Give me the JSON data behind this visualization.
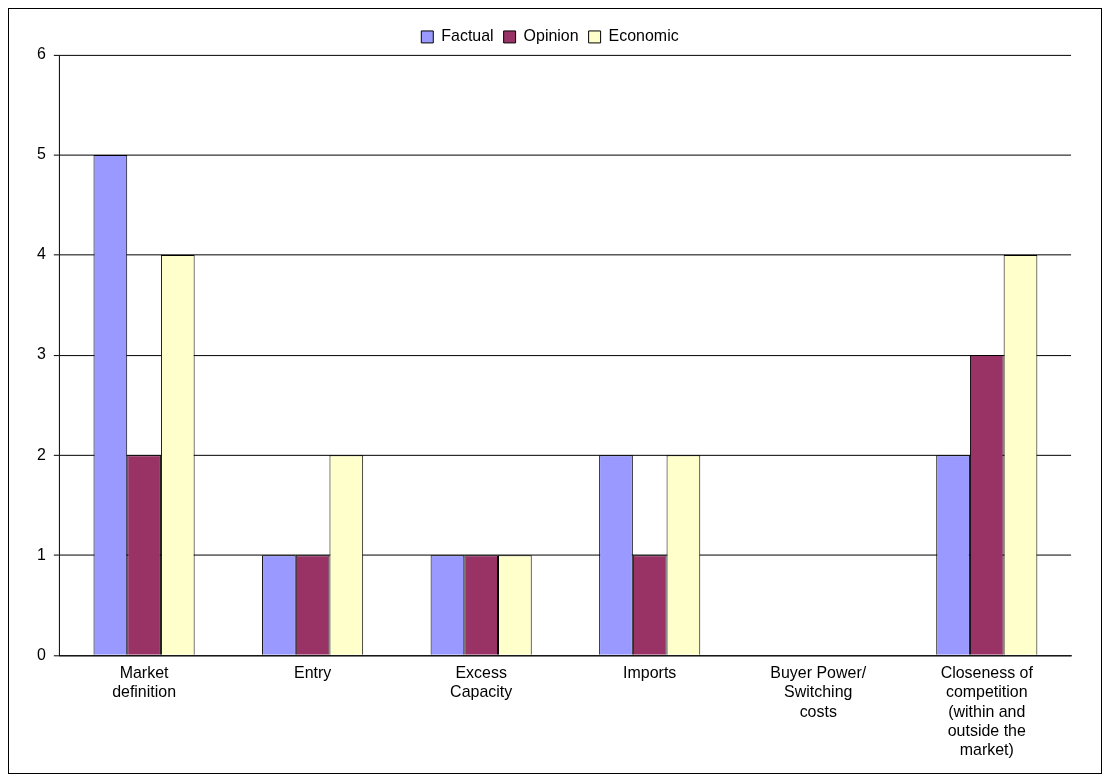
{
  "chart_data": {
    "type": "bar",
    "categories": [
      "Market definition",
      "Entry",
      "Excess Capacity",
      "Imports",
      "Buyer Power/ Switching costs",
      "Closeness of competition (within and outside the market)"
    ],
    "series": [
      {
        "name": "Factual",
        "color": "#9999ff",
        "values": [
          5,
          1,
          1,
          2,
          0,
          2
        ]
      },
      {
        "name": "Opinion",
        "color": "#993366",
        "values": [
          2,
          1,
          1,
          1,
          0,
          3
        ]
      },
      {
        "name": "Economic",
        "color": "#ffffcc",
        "values": [
          4,
          2,
          1,
          2,
          0,
          4
        ]
      }
    ],
    "ylim": [
      0,
      6
    ],
    "yticks": [
      0,
      1,
      2,
      3,
      4,
      5,
      6
    ],
    "grid": "y",
    "legend": "top"
  }
}
